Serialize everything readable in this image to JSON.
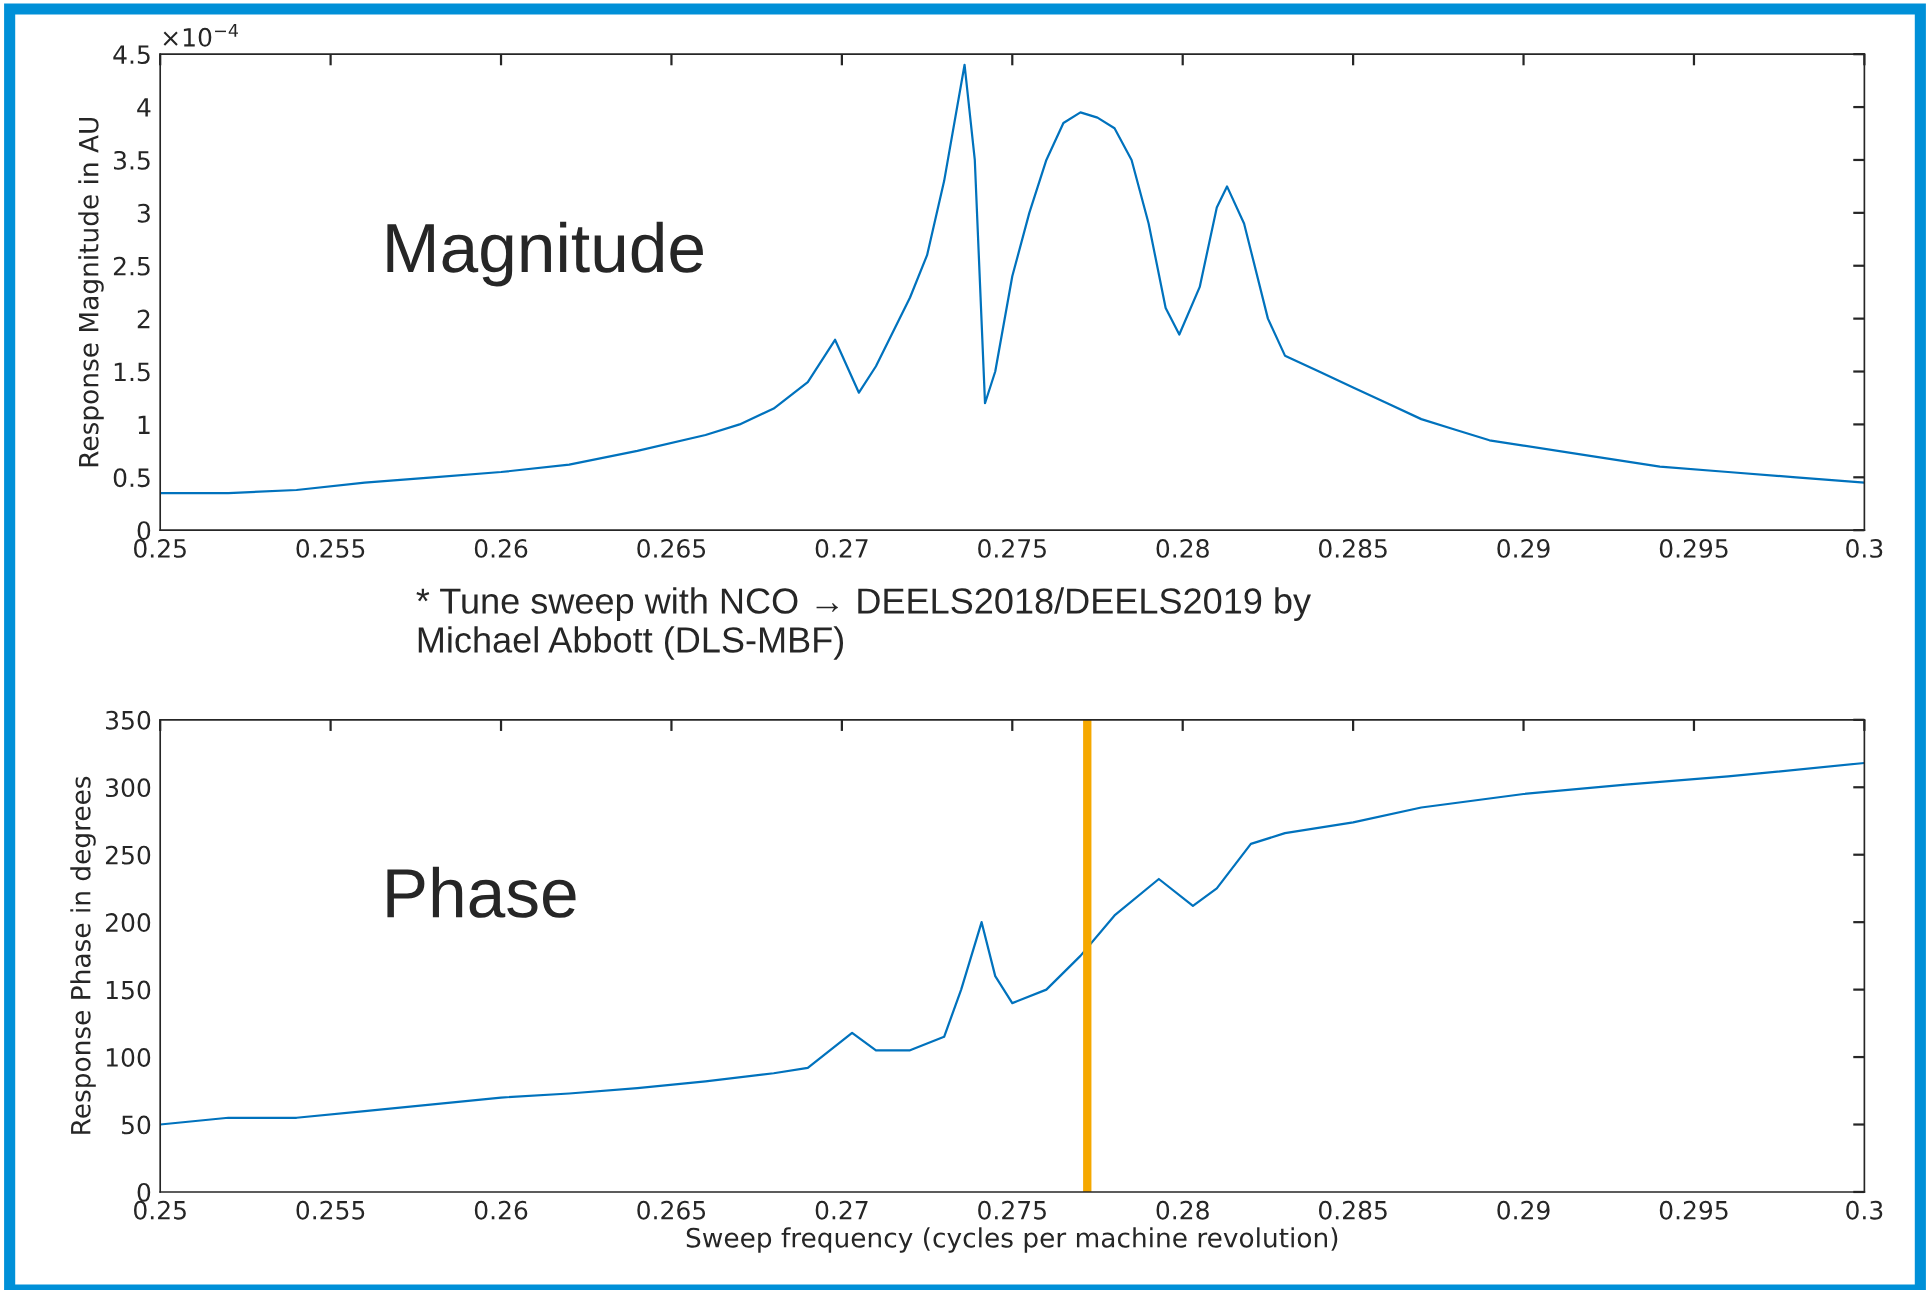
{
  "chart_data": [
    {
      "type": "line",
      "ylabel": "Response Magnitude in AU",
      "annotations": [
        "×10$^{−4}$",
        "Magnitude",
        "* Tune sweep with NCO → DEELS2018/DEELS2019 by\nMichael Abbott (DLS-MBF)"
      ],
      "x": [
        0.25,
        0.252,
        0.254,
        0.256,
        0.258,
        0.26,
        0.262,
        0.264,
        0.266,
        0.267,
        0.268,
        0.269,
        0.2698,
        0.2705,
        0.271,
        0.272,
        0.2725,
        0.273,
        0.2736,
        0.2739,
        0.2742,
        0.2745,
        0.275,
        0.2755,
        0.276,
        0.2765,
        0.277,
        0.2775,
        0.278,
        0.2785,
        0.279,
        0.2795,
        0.2799,
        0.2805,
        0.281,
        0.2813,
        0.2818,
        0.2825,
        0.283,
        0.284,
        0.285,
        0.286,
        0.287,
        0.288,
        0.289,
        0.29,
        0.292,
        0.294,
        0.296,
        0.298,
        0.3
      ],
      "series": [
        {
          "color": "#0072bd",
          "values": [
            0.35,
            0.35,
            0.38,
            0.45,
            0.5,
            0.55,
            0.62,
            0.75,
            0.9,
            1.0,
            1.15,
            1.4,
            1.8,
            1.3,
            1.55,
            2.2,
            2.6,
            3.3,
            4.4,
            3.5,
            1.2,
            1.5,
            2.4,
            3.0,
            3.5,
            3.85,
            3.95,
            3.9,
            3.8,
            3.5,
            2.9,
            2.1,
            1.85,
            2.3,
            3.05,
            3.25,
            2.9,
            2.0,
            1.65,
            1.5,
            1.35,
            1.2,
            1.05,
            0.95,
            0.85,
            0.8,
            0.7,
            0.6,
            0.55,
            0.5,
            0.45
          ]
        }
      ],
      "xlim": [
        0.25,
        0.3
      ],
      "xticks": [
        0.25,
        0.255,
        0.26,
        0.265,
        0.27,
        0.275,
        0.28,
        0.285,
        0.29,
        0.295,
        0.3
      ],
      "ylim": [
        0,
        4.5
      ],
      "yticks": [
        0,
        0.5,
        1,
        1.5,
        2,
        2.5,
        3,
        3.5,
        4,
        4.5
      ],
      "grid": false,
      "legend": false
    },
    {
      "type": "line",
      "xlabel": "Sweep frequency (cycles per machine revolution)",
      "ylabel": "Response Phase in degrees",
      "annotations": [
        "Phase"
      ],
      "x": [
        0.25,
        0.252,
        0.254,
        0.256,
        0.258,
        0.26,
        0.262,
        0.264,
        0.266,
        0.268,
        0.269,
        0.2703,
        0.271,
        0.272,
        0.273,
        0.2735,
        0.2741,
        0.2745,
        0.275,
        0.276,
        0.277,
        0.278,
        0.2793,
        0.2803,
        0.281,
        0.282,
        0.283,
        0.285,
        0.287,
        0.29,
        0.293,
        0.296,
        0.3
      ],
      "series": [
        {
          "color": "#0072bd",
          "values": [
            50,
            55,
            55,
            60,
            65,
            70,
            73,
            77,
            82,
            88,
            92,
            118,
            105,
            105,
            115,
            150,
            200,
            160,
            140,
            150,
            175,
            205,
            232,
            212,
            225,
            258,
            266,
            274,
            285,
            295,
            302,
            308,
            318
          ]
        }
      ],
      "ref_lines": [
        {
          "axis": "x",
          "value": 0.2772,
          "color": "#f5a800",
          "line_style": "solid"
        }
      ],
      "xlim": [
        0.25,
        0.3
      ],
      "xticks": [
        0.25,
        0.255,
        0.26,
        0.265,
        0.27,
        0.275,
        0.28,
        0.285,
        0.29,
        0.295,
        0.3
      ],
      "ylim": [
        0,
        350
      ],
      "yticks": [
        0,
        50,
        100,
        150,
        200,
        250,
        300,
        350
      ],
      "grid": false,
      "legend": false
    }
  ]
}
